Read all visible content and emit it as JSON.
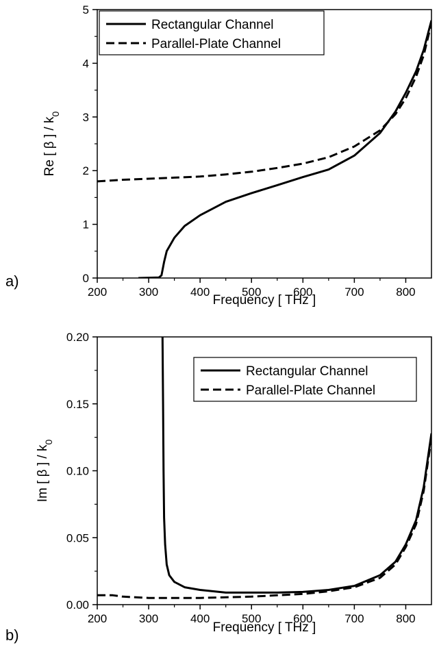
{
  "chart_data": [
    {
      "type": "line",
      "panel_label": "a)",
      "xlabel": "Frequency [ THz ]",
      "ylabel": "Re [ β ] / k",
      "ylabel_sub": "0",
      "xlim": [
        200,
        850
      ],
      "ylim": [
        0,
        5
      ],
      "xticks": [
        200,
        300,
        400,
        500,
        600,
        700,
        800
      ],
      "yticks": [
        0,
        1,
        2,
        3,
        4,
        5
      ],
      "legend_position": "top-left",
      "series": [
        {
          "name": "Rectangular Channel",
          "style": "solid",
          "points": [
            [
              280,
              0
            ],
            [
              320,
              0.01
            ],
            [
              325,
              0.05
            ],
            [
              330,
              0.3
            ],
            [
              335,
              0.5
            ],
            [
              350,
              0.75
            ],
            [
              370,
              0.97
            ],
            [
              400,
              1.17
            ],
            [
              450,
              1.42
            ],
            [
              500,
              1.58
            ],
            [
              550,
              1.73
            ],
            [
              600,
              1.88
            ],
            [
              650,
              2.02
            ],
            [
              700,
              2.28
            ],
            [
              750,
              2.7
            ],
            [
              780,
              3.1
            ],
            [
              800,
              3.45
            ],
            [
              820,
              3.85
            ],
            [
              835,
              4.25
            ],
            [
              850,
              4.8
            ]
          ]
        },
        {
          "name": "Parallel-Plate Channel",
          "style": "dashed",
          "points": [
            [
              200,
              1.8
            ],
            [
              250,
              1.83
            ],
            [
              300,
              1.85
            ],
            [
              350,
              1.87
            ],
            [
              400,
              1.89
            ],
            [
              450,
              1.93
            ],
            [
              500,
              1.98
            ],
            [
              550,
              2.05
            ],
            [
              600,
              2.13
            ],
            [
              650,
              2.25
            ],
            [
              700,
              2.45
            ],
            [
              750,
              2.75
            ],
            [
              780,
              3.05
            ],
            [
              800,
              3.35
            ],
            [
              820,
              3.75
            ],
            [
              835,
              4.15
            ],
            [
              850,
              4.75
            ]
          ]
        }
      ]
    },
    {
      "type": "line",
      "panel_label": "b)",
      "xlabel": "Frequency [ THz ]",
      "ylabel": "Im [ β ] / k",
      "ylabel_sub": "0",
      "xlim": [
        200,
        850
      ],
      "ylim": [
        0,
        0.2
      ],
      "xticks": [
        200,
        300,
        400,
        500,
        600,
        700,
        800
      ],
      "yticks": [
        "0.00",
        "0.05",
        "0.10",
        "0.15",
        "0.20"
      ],
      "legend_position": "top-right",
      "series": [
        {
          "name": "Rectangular Channel",
          "style": "solid",
          "points": [
            [
              327,
              0.2
            ],
            [
              328,
              0.15
            ],
            [
              329,
              0.1
            ],
            [
              330,
              0.065
            ],
            [
              332,
              0.045
            ],
            [
              335,
              0.03
            ],
            [
              340,
              0.022
            ],
            [
              350,
              0.017
            ],
            [
              370,
              0.013
            ],
            [
              400,
              0.011
            ],
            [
              450,
              0.009
            ],
            [
              500,
              0.009
            ],
            [
              550,
              0.009
            ],
            [
              600,
              0.0095
            ],
            [
              650,
              0.011
            ],
            [
              700,
              0.014
            ],
            [
              750,
              0.022
            ],
            [
              780,
              0.032
            ],
            [
              800,
              0.045
            ],
            [
              820,
              0.063
            ],
            [
              835,
              0.088
            ],
            [
              850,
              0.128
            ]
          ]
        },
        {
          "name": "Parallel-Plate Channel",
          "style": "dashed",
          "points": [
            [
              200,
              0.007
            ],
            [
              230,
              0.007
            ],
            [
              250,
              0.006
            ],
            [
              300,
              0.005
            ],
            [
              400,
              0.005
            ],
            [
              500,
              0.006
            ],
            [
              600,
              0.008
            ],
            [
              650,
              0.01
            ],
            [
              700,
              0.013
            ],
            [
              750,
              0.02
            ],
            [
              780,
              0.03
            ],
            [
              800,
              0.043
            ],
            [
              820,
              0.06
            ],
            [
              835,
              0.085
            ],
            [
              850,
              0.125
            ]
          ]
        }
      ]
    }
  ]
}
